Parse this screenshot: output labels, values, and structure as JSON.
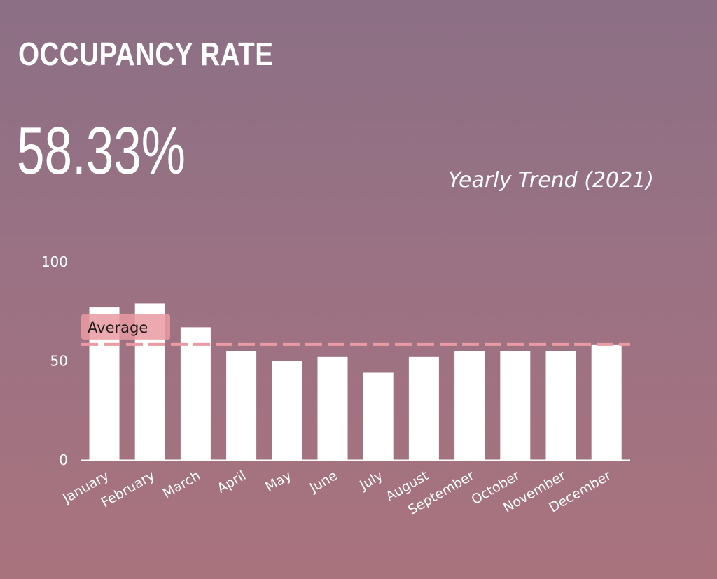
{
  "header": {
    "title": "OCCUPANCY RATE",
    "kpi_value": "58.33%",
    "subtitle": "Yearly Trend (2021)"
  },
  "colors": {
    "bar": "#ffffff",
    "average_line": "#e99aa2",
    "average_label_bg": "#e99aa2",
    "axis": "#ffffff"
  },
  "chart_data": {
    "type": "bar",
    "categories": [
      "January",
      "February",
      "March",
      "April",
      "May",
      "June",
      "July",
      "August",
      "September",
      "October",
      "November",
      "December"
    ],
    "values": [
      77,
      79,
      67,
      55,
      50,
      52,
      44,
      52,
      55,
      55,
      55,
      58
    ],
    "ylim": [
      0,
      100
    ],
    "yticks": [
      0,
      50,
      100
    ],
    "grid": false,
    "reference_line": {
      "label": "Average",
      "value": 58.33,
      "style": "dashed"
    }
  }
}
